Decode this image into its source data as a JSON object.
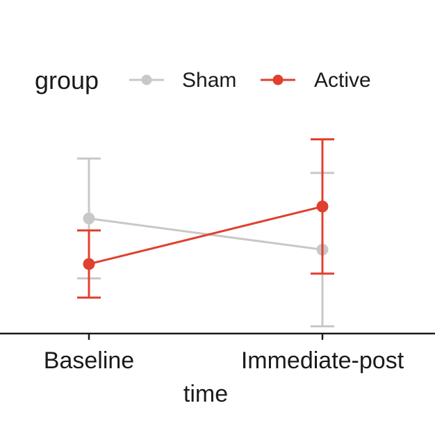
{
  "chart_data": {
    "type": "line",
    "title": "",
    "xlabel": "time",
    "ylabel": "",
    "categories": [
      "Baseline",
      "Immediate-post"
    ],
    "ylim": [
      0,
      10
    ],
    "grid": false,
    "legend": {
      "title": "group",
      "placement": "top"
    },
    "series": [
      {
        "name": "Sham",
        "color": "#c8c8c8",
        "values": [
          4.8,
          3.5
        ],
        "error_low": [
          2.3,
          0.3
        ],
        "error_high": [
          7.3,
          6.7
        ]
      },
      {
        "name": "Active",
        "color": "#e0402e",
        "values": [
          2.9,
          5.3
        ],
        "error_low": [
          1.5,
          2.5
        ],
        "error_high": [
          4.3,
          8.1
        ]
      }
    ]
  }
}
